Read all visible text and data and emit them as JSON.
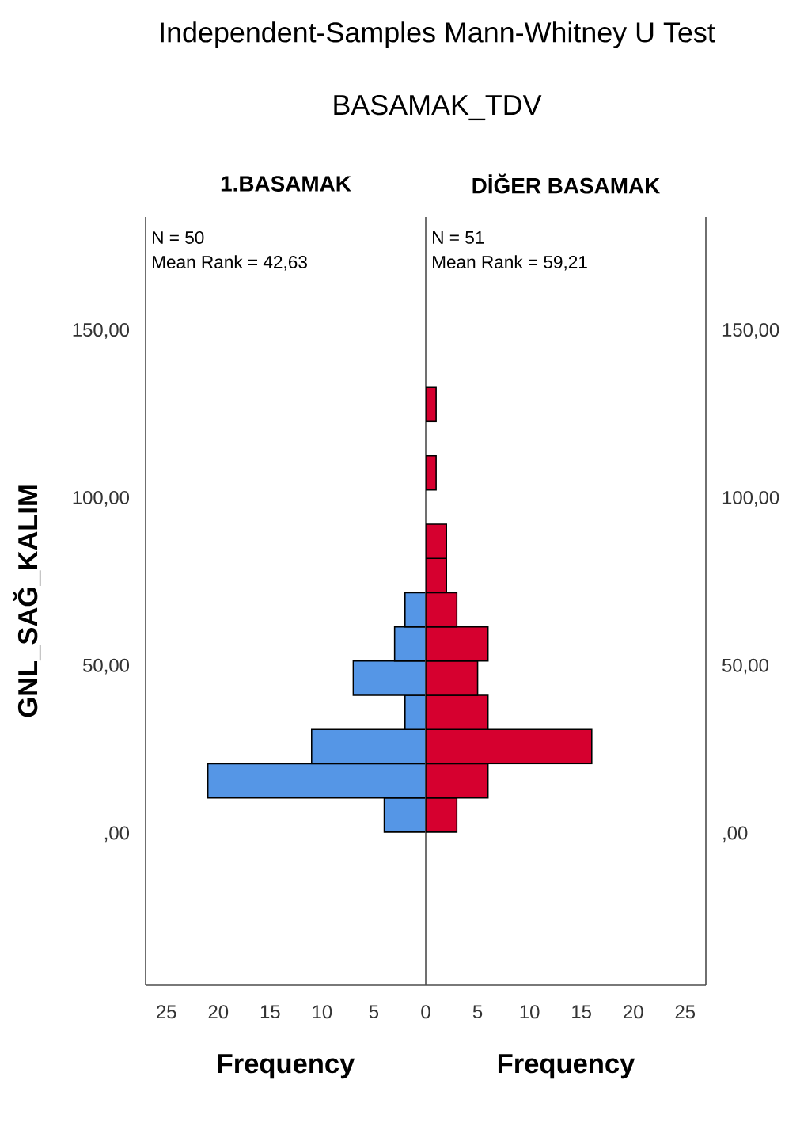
{
  "chart_data": [
    {
      "type": "histogram",
      "orientation": "horizontal",
      "title": "Independent-Samples Mann-Whitney U Test",
      "subtitle": "BASAMAK_TDV",
      "xlabel": "Frequency",
      "ylabel": "GNL_SAĞ_KALIM",
      "annotations": [
        "1.BASAMAK",
        "N = 50",
        "Mean Rank = 42,63"
      ],
      "bins": [
        0.6,
        10.8,
        21,
        31.2,
        41.4,
        51.6,
        61.8,
        72,
        82.2,
        92.4,
        102.6,
        112.8,
        123,
        133.2
      ],
      "values": [
        4,
        21,
        11,
        2,
        7,
        3,
        2,
        0,
        0,
        0,
        0,
        0,
        0
      ],
      "color": "#5596e6",
      "xlim": [
        27,
        0
      ],
      "xticks": [
        25,
        20,
        15,
        10,
        5
      ],
      "ylim": [
        -45,
        184
      ],
      "yticks": [
        {
          "value": 0,
          "label": ",00"
        },
        {
          "value": 50,
          "label": "50,00"
        },
        {
          "value": 100,
          "label": "100,00"
        },
        {
          "value": 150,
          "label": "150,00"
        }
      ]
    },
    {
      "type": "histogram",
      "orientation": "horizontal",
      "xlabel": "Frequency",
      "annotations": [
        "DİĞER BASAMAK",
        "N = 51",
        "Mean Rank = 59,21"
      ],
      "bins": [
        0.6,
        10.8,
        21,
        31.2,
        41.4,
        51.6,
        61.8,
        72,
        82.2,
        92.4,
        102.6,
        112.8,
        123,
        133.2
      ],
      "values": [
        3,
        6,
        16,
        6,
        5,
        6,
        3,
        2,
        2,
        0,
        1,
        0,
        1
      ],
      "color": "#d6002f",
      "xlim": [
        0,
        27
      ],
      "xticks": [
        0,
        5,
        10,
        15,
        20,
        25
      ],
      "ylim": [
        -45,
        184
      ],
      "yticks": [
        {
          "value": 0,
          "label": ",00"
        },
        {
          "value": 50,
          "label": "50,00"
        },
        {
          "value": 100,
          "label": "100,00"
        },
        {
          "value": 150,
          "label": "150,00"
        }
      ]
    }
  ]
}
